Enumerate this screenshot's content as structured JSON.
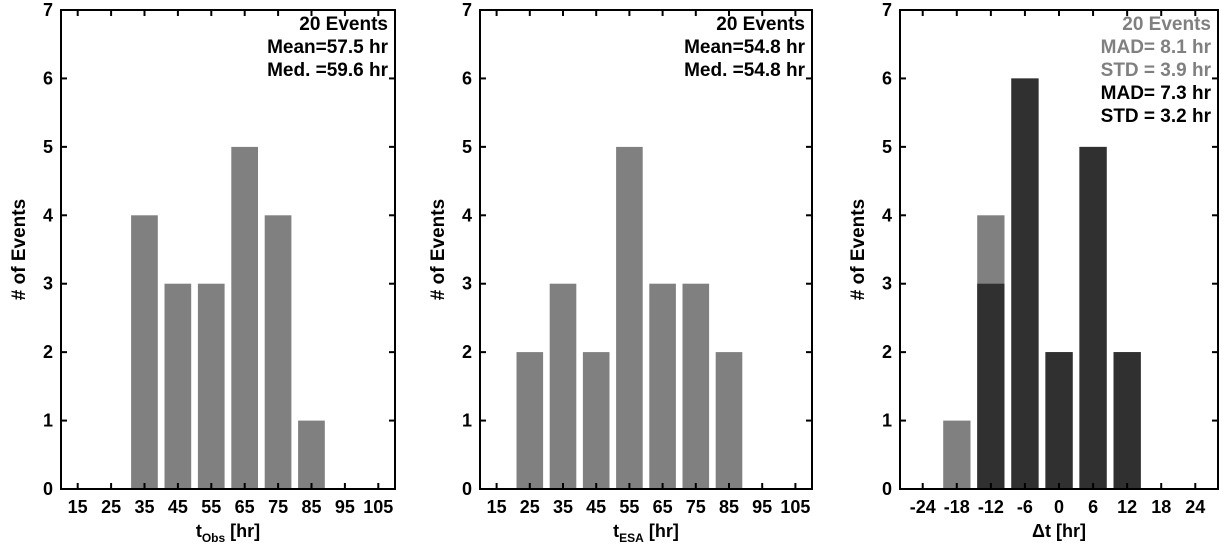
{
  "colors": {
    "gray": "#808080",
    "dark": "#303030",
    "axis": "#000000"
  },
  "chart_data": [
    {
      "type": "bar",
      "ylabel": "# of Events",
      "xlabel": {
        "main": "t",
        "sub": "Obs",
        "unit": " [hr]"
      },
      "xticks": [
        15,
        25,
        35,
        45,
        55,
        65,
        75,
        85,
        95,
        105
      ],
      "xlim": [
        10,
        110
      ],
      "ylim": [
        0,
        7
      ],
      "yticks": [
        0,
        1,
        2,
        3,
        4,
        5,
        6,
        7
      ],
      "bar_width": 8,
      "series": [
        {
          "color": "#808080",
          "x": [
            15,
            25,
            35,
            45,
            55,
            65,
            75,
            85,
            95,
            105
          ],
          "values": [
            0,
            0,
            4,
            3,
            3,
            5,
            4,
            1,
            0,
            0
          ]
        }
      ],
      "annotations": [
        {
          "text": "20 Events",
          "color": "#000000"
        },
        {
          "text": "Mean=57.5 hr",
          "color": "#000000"
        },
        {
          "text": "Med. =59.6 hr",
          "color": "#000000"
        }
      ]
    },
    {
      "type": "bar",
      "ylabel": "# of Events",
      "xlabel": {
        "main": "t",
        "sub": "ESA",
        "unit": " [hr]"
      },
      "xticks": [
        15,
        25,
        35,
        45,
        55,
        65,
        75,
        85,
        95,
        105
      ],
      "xlim": [
        10,
        110
      ],
      "ylim": [
        0,
        7
      ],
      "yticks": [
        0,
        1,
        2,
        3,
        4,
        5,
        6,
        7
      ],
      "bar_width": 8,
      "series": [
        {
          "color": "#808080",
          "x": [
            15,
            25,
            35,
            45,
            55,
            65,
            75,
            85,
            95,
            105
          ],
          "values": [
            0,
            2,
            3,
            2,
            5,
            3,
            3,
            2,
            0,
            0
          ]
        }
      ],
      "annotations": [
        {
          "text": "20 Events",
          "color": "#000000"
        },
        {
          "text": "Mean=54.8 hr",
          "color": "#000000"
        },
        {
          "text": "Med. =54.8 hr",
          "color": "#000000"
        }
      ]
    },
    {
      "type": "bar",
      "ylabel": "# of Events",
      "xlabel": {
        "main": "Δt",
        "sub": "",
        "unit": " [hr]"
      },
      "xticks": [
        -24,
        -18,
        -12,
        -6,
        0,
        6,
        12,
        18,
        24
      ],
      "xlim": [
        -28,
        28
      ],
      "ylim": [
        0,
        7
      ],
      "yticks": [
        0,
        1,
        2,
        3,
        4,
        5,
        6,
        7
      ],
      "bar_width": 4.8,
      "series": [
        {
          "color": "#808080",
          "x": [
            -24,
            -18,
            -12,
            -6,
            0,
            6,
            12,
            18,
            24
          ],
          "values": [
            0,
            1,
            4,
            6,
            2,
            5,
            2,
            0,
            0
          ]
        },
        {
          "color": "#303030",
          "x": [
            -24,
            -18,
            -12,
            -6,
            0,
            6,
            12,
            18,
            24
          ],
          "values": [
            0,
            0,
            3,
            6,
            2,
            5,
            2,
            0,
            0
          ]
        }
      ],
      "annotations": [
        {
          "text": "20 Events",
          "color": "#808080"
        },
        {
          "text": "MAD= 8.1 hr",
          "color": "#808080"
        },
        {
          "text": "STD = 3.9 hr",
          "color": "#808080"
        },
        {
          "text": "MAD= 7.3 hr",
          "color": "#000000"
        },
        {
          "text": "STD = 3.2 hr",
          "color": "#000000"
        }
      ]
    }
  ]
}
